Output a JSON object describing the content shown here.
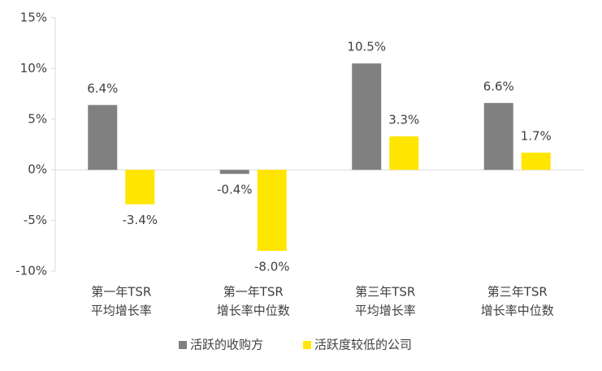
{
  "chart_data": {
    "type": "bar",
    "categories": [
      [
        "第一年TSR",
        "平均增长率"
      ],
      [
        "第一年TSR",
        "增长率中位数"
      ],
      [
        "第三年TSR",
        "平均增长率"
      ],
      [
        "第三年TSR",
        "增长率中位数"
      ]
    ],
    "series": [
      {
        "name": "活跃的收购方",
        "color": "#808080",
        "values": [
          6.4,
          -0.4,
          10.5,
          6.6
        ],
        "value_labels": [
          "6.4%",
          "-0.4%",
          "10.5%",
          "6.6%"
        ]
      },
      {
        "name": "活跃度较低的公司",
        "color": "#ffe600",
        "values": [
          -3.4,
          -8.0,
          3.3,
          1.7
        ],
        "value_labels": [
          "-3.4%",
          "-8.0%",
          "3.3%",
          "1.7%"
        ]
      }
    ],
    "ylim": [
      -10,
      15
    ],
    "yticks": [
      {
        "value": -10,
        "label": "-10%"
      },
      {
        "value": -5,
        "label": "-5%"
      },
      {
        "value": 0,
        "label": "0%"
      },
      {
        "value": 5,
        "label": "5%"
      },
      {
        "value": 10,
        "label": "10%"
      },
      {
        "value": 15,
        "label": "15%"
      }
    ],
    "legend": "bottom"
  }
}
